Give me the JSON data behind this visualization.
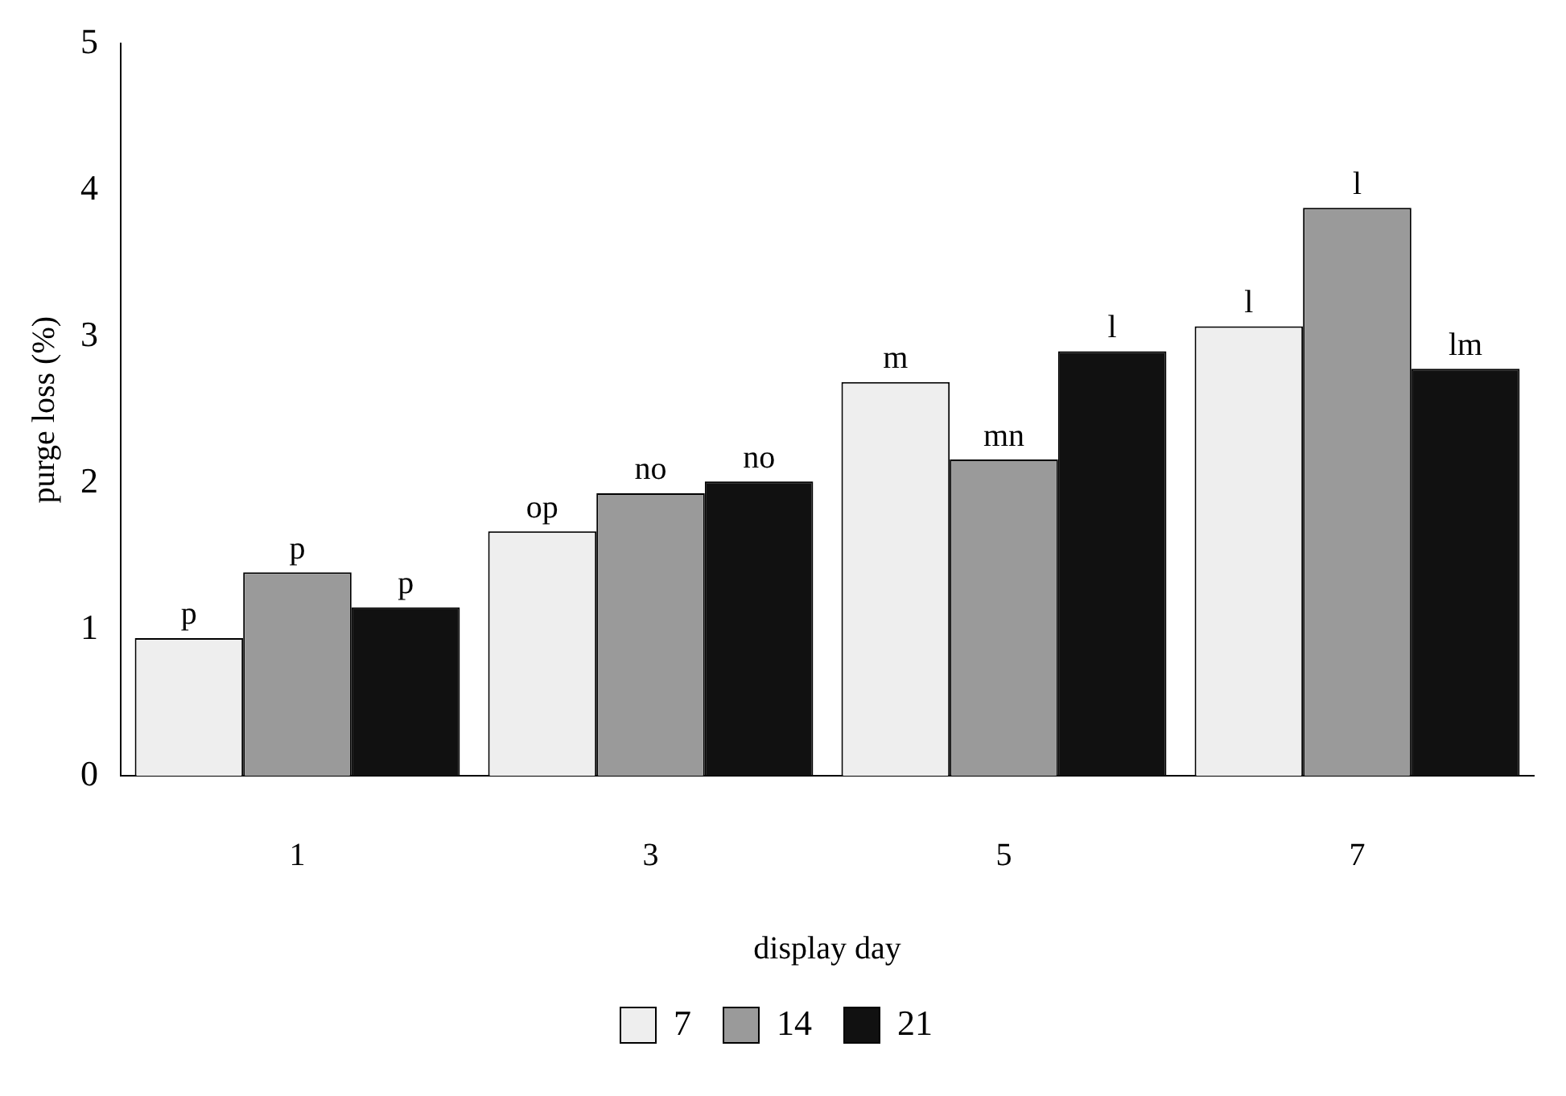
{
  "chart_data": {
    "type": "bar",
    "xlabel": "display day",
    "ylabel": "purge loss (%)",
    "categories": [
      "1",
      "3",
      "5",
      "7"
    ],
    "series": [
      {
        "name": "7",
        "color": "#eeeeee",
        "values": [
          0.94,
          1.67,
          2.69,
          3.07
        ],
        "value_labels": [
          "p",
          "op",
          "m",
          "l"
        ]
      },
      {
        "name": "14",
        "color": "#9a9a9a",
        "values": [
          1.39,
          1.93,
          2.16,
          3.88
        ],
        "value_labels": [
          "p",
          "no",
          "mn",
          "l"
        ]
      },
      {
        "name": "21",
        "color": "#111111",
        "values": [
          1.15,
          2.01,
          2.9,
          2.78
        ],
        "value_labels": [
          "p",
          "no",
          "l",
          "lm"
        ]
      }
    ],
    "ylim": [
      0,
      5
    ],
    "yticks": [
      0,
      1,
      2,
      3,
      4,
      5
    ],
    "grid": false,
    "legend": "bottom"
  }
}
